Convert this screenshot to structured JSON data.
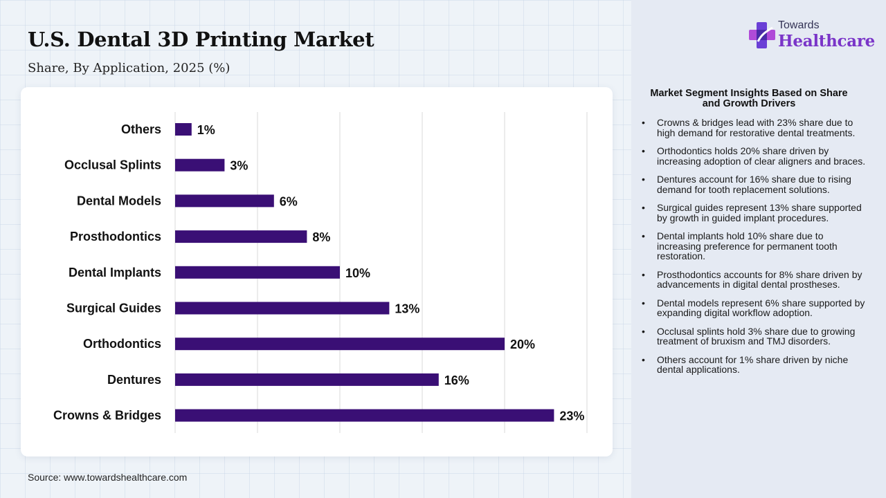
{
  "title": "U.S. Dental 3D Printing Market",
  "subtitle": "Share, By Application, 2025 (%)",
  "source": "Source: www.towardshealthcare.com",
  "brand": {
    "line1": "Towards",
    "line2": "Healthcare",
    "logo_icon": "medical-cross-icon",
    "color": "#7a35c8"
  },
  "chart_data": {
    "type": "bar",
    "orientation": "horizontal",
    "categories": [
      "Others",
      "Occlusal Splints",
      "Dental Models",
      "Prosthodontics",
      "Dental Implants",
      "Surgical Guides",
      "Orthodontics",
      "Dentures",
      "Crowns & Bridges"
    ],
    "values": [
      1,
      3,
      6,
      8,
      10,
      13,
      20,
      16,
      23
    ],
    "data_labels": [
      "1%",
      "3%",
      "6%",
      "8%",
      "10%",
      "13%",
      "20%",
      "16%",
      "23%"
    ],
    "xlim": [
      0,
      25
    ],
    "grid": true,
    "bar_color": "#3a0f75"
  },
  "insights": {
    "title": "Market Segment Insights Based on Share and Growth Drivers",
    "items": [
      "Crowns & bridges lead with 23% share due to high demand for restorative dental treatments.",
      "Orthodontics holds 20% share driven by increasing adoption of clear aligners and braces.",
      "Dentures account for 16% share due to rising demand for tooth replacement solutions.",
      "Surgical guides represent 13% share supported by growth in guided implant procedures.",
      "Dental implants hold 10% share due to increasing preference for permanent tooth restoration.",
      "Prosthodontics accounts for 8% share driven by advancements in digital dental prostheses.",
      "Dental models represent 6% share supported by expanding digital workflow adoption.",
      "Occlusal splints hold 3% share due to growing treatment of bruxism and TMJ disorders.",
      "Others account for 1% share driven by niche dental applications."
    ]
  }
}
